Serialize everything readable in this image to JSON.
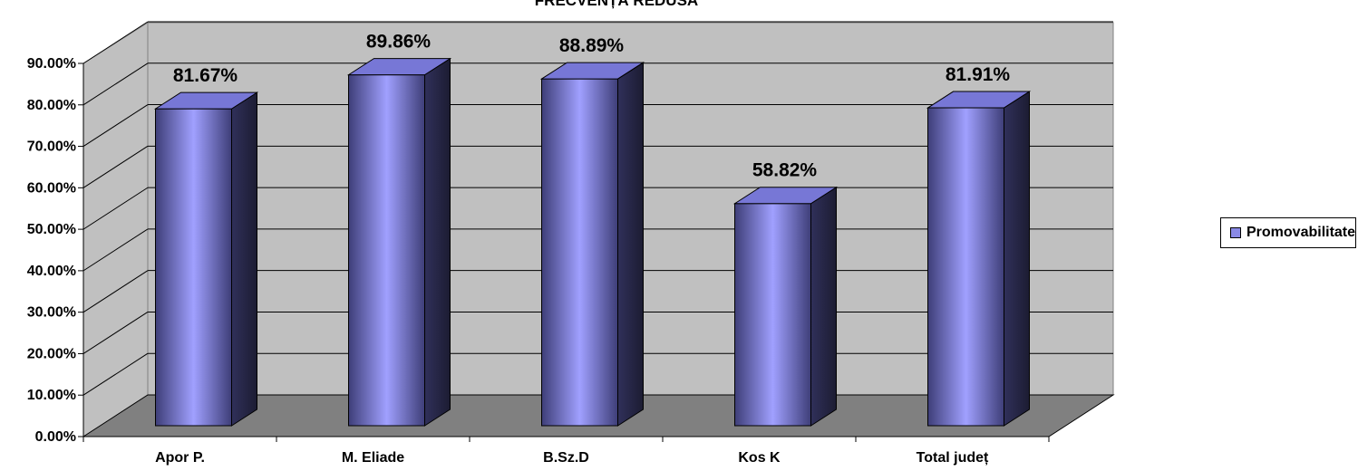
{
  "chart_data": {
    "type": "bar",
    "title": "FRECVENȚĂ REDUSĂ",
    "categories": [
      "Apor P.",
      "M. Eliade",
      "B.Sz.D",
      "Kos K",
      "Total județ"
    ],
    "series": [
      {
        "name": "Promovabilitate FR",
        "values": [
          81.67,
          89.86,
          88.89,
          58.82,
          81.91
        ],
        "labels": [
          "81.67%",
          "89.86%",
          "88.89%",
          "58.82%",
          "81.91%"
        ]
      }
    ],
    "yticks": [
      "0.00%",
      "10.00%",
      "20.00%",
      "30.00%",
      "40.00%",
      "50.00%",
      "60.00%",
      "70.00%",
      "80.00%",
      "90.00%"
    ],
    "ylim": [
      0,
      90
    ],
    "grid": true,
    "legend_position": "right",
    "three_d": true
  },
  "colors": {
    "bar_front_edge": "#3e3e78",
    "bar_front_mid": "#a0a0ff",
    "bar_side": "#25253f",
    "bar_top": "#7777d6",
    "wall": "#c0c0c0",
    "floor": "#808080"
  }
}
